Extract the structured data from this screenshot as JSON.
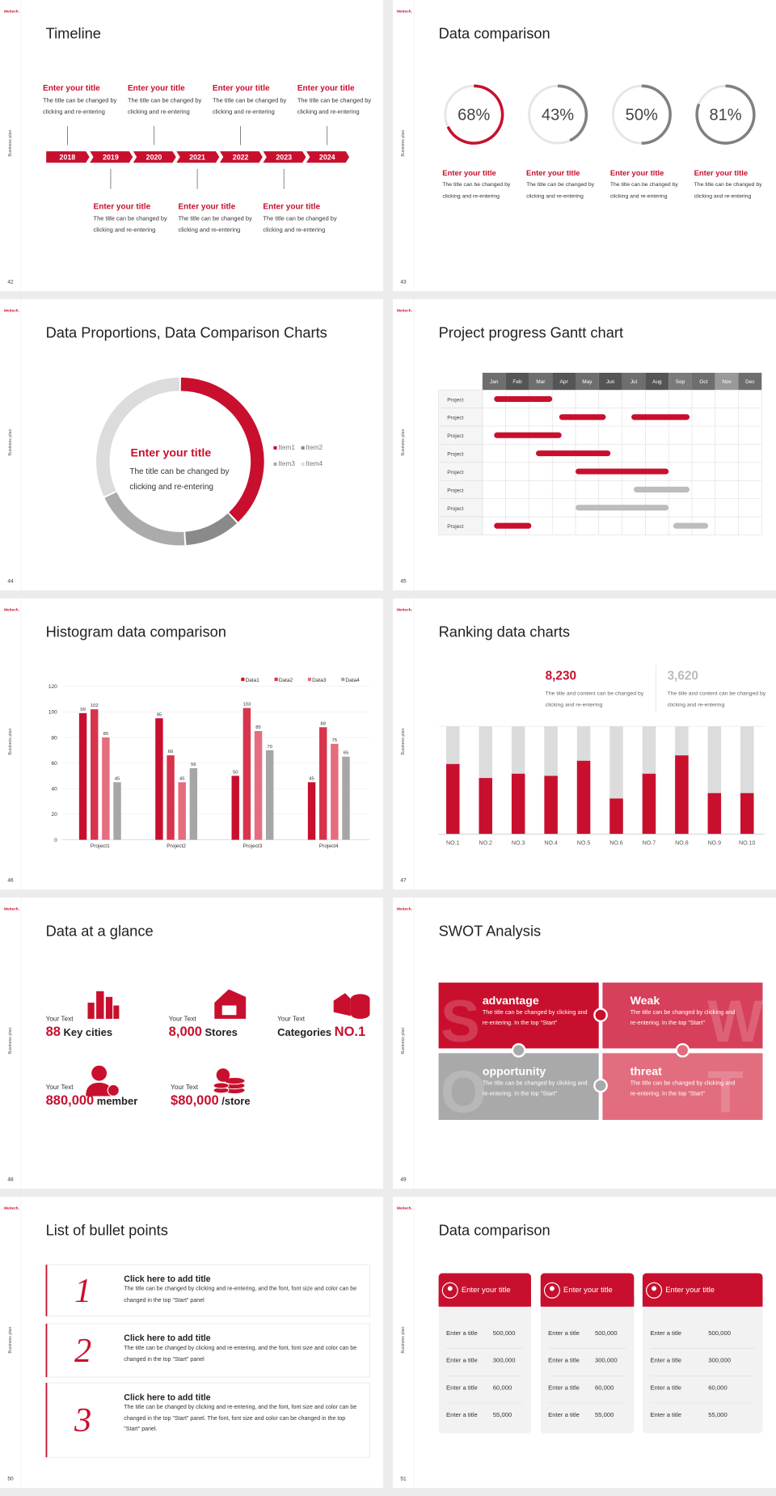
{
  "slides": [
    {
      "logo": "Weitech.",
      "side": "Business plan",
      "number": "42",
      "title": "Timeline",
      "years": [
        "2018",
        "2019",
        "2020",
        "2021",
        "2022",
        "2023",
        "2024"
      ],
      "top_events": [
        {
          "title": "Enter your title",
          "text": "The title can be changed by clicking and re-entering"
        },
        {
          "title": "Enter your title",
          "text": "The title can be changed by clicking and re-entering"
        },
        {
          "title": "Enter your title",
          "text": "The title can be changed by clicking and re-entering"
        },
        {
          "title": "Enter your title",
          "text": "The title can be changed by clicking and re-entering"
        }
      ],
      "bottom_events": [
        {
          "title": "Enter your title",
          "text": "The title can be changed by clicking and re-entering"
        },
        {
          "title": "Enter your title",
          "text": "The title can be changed by clicking and re-entering"
        },
        {
          "title": "Enter your title",
          "text": "The title can be changed by clicking and re-entering"
        }
      ]
    },
    {
      "logo": "Weitech.",
      "side": "Business plan",
      "number": "43",
      "title": "Data comparison",
      "items": [
        {
          "value": 68,
          "label": "68%",
          "color": "#c8102e",
          "title": "Enter your title",
          "text": "The title can be changed by clicking and re-entering"
        },
        {
          "value": 43,
          "label": "43%",
          "color": "#808080",
          "title": "Enter your title",
          "text": "The title can be changed by clicking and re-entering"
        },
        {
          "value": 50,
          "label": "50%",
          "color": "#808080",
          "title": "Enter your title",
          "text": "The title can be changed by clicking and re-entering"
        },
        {
          "value": 81,
          "label": "81%",
          "color": "#808080",
          "title": "Enter your title",
          "text": "The title can be changed by clicking and re-entering"
        }
      ]
    },
    {
      "logo": "Weitech.",
      "side": "Business plan",
      "number": "44",
      "title": "Data Proportions, Data Comparison Charts",
      "center_title": "Enter your title",
      "center_text": "The title can be changed by clicking and re-entering",
      "items": [
        {
          "name": "Item1",
          "value": 38,
          "color": "#c8102e"
        },
        {
          "name": "Item2",
          "value": 11,
          "color": "#8a8a8a"
        },
        {
          "name": "Item3",
          "value": 19,
          "color": "#ababab"
        },
        {
          "name": "Item4",
          "value": 32,
          "color": "#dcdcdc"
        }
      ]
    },
    {
      "logo": "Weitech.",
      "side": "Business plan",
      "number": "45",
      "title": "Project progress Gantt chart",
      "months": [
        "Jan",
        "Feb",
        "Mar",
        "Apr",
        "May",
        "Jun",
        "Jul",
        "Aug",
        "Sep",
        "Oct",
        "Nov",
        "Dec"
      ],
      "rows": [
        {
          "label": "Project",
          "bars": [
            {
              "start": 0.5,
              "end": 3.0,
              "color": "#c8102e"
            }
          ]
        },
        {
          "label": "Project",
          "bars": [
            {
              "start": 3.3,
              "end": 5.3,
              "color": "#c8102e"
            },
            {
              "start": 6.4,
              "end": 8.9,
              "color": "#c8102e"
            }
          ]
        },
        {
          "label": "Project",
          "bars": [
            {
              "start": 0.5,
              "end": 3.4,
              "color": "#c8102e"
            }
          ]
        },
        {
          "label": "Project",
          "bars": [
            {
              "start": 2.3,
              "end": 5.5,
              "color": "#c8102e"
            }
          ]
        },
        {
          "label": "Project",
          "bars": [
            {
              "start": 4.0,
              "end": 8.0,
              "color": "#c8102e"
            }
          ]
        },
        {
          "label": "Project",
          "bars": [
            {
              "start": 6.5,
              "end": 8.9,
              "color": "#bdbdbd"
            }
          ]
        },
        {
          "label": "Project",
          "bars": [
            {
              "start": 4.0,
              "end": 8.0,
              "color": "#bdbdbd"
            }
          ]
        },
        {
          "label": "Project",
          "bars": [
            {
              "start": 0.5,
              "end": 2.1,
              "color": "#c8102e"
            },
            {
              "start": 8.2,
              "end": 9.7,
              "color": "#bdbdbd"
            }
          ]
        }
      ]
    },
    {
      "logo": "Weitech.",
      "side": "Business plan",
      "number": "46",
      "title": "Histogram data comparison",
      "categories": [
        "Project1",
        "Project2",
        "Project3",
        "Project4"
      ],
      "series": [
        {
          "name": "Data1",
          "color": "#c8102e",
          "values": [
            99,
            95,
            50,
            45
          ]
        },
        {
          "name": "Data2",
          "color": "#d8344d",
          "values": [
            102,
            66,
            103,
            88
          ]
        },
        {
          "name": "Data3",
          "color": "#e66d7e",
          "values": [
            80,
            45,
            85,
            75
          ]
        },
        {
          "name": "Data4",
          "color": "#a6a6a6",
          "values": [
            45,
            56,
            70,
            65
          ]
        }
      ],
      "ylim": [
        0,
        120
      ],
      "yticks": [
        0,
        20,
        40,
        60,
        80,
        100,
        120
      ]
    },
    {
      "logo": "Weitech.",
      "side": "Business plan",
      "number": "47",
      "title": "Ranking data charts",
      "stats": [
        {
          "value": "8,230",
          "color": "#c8102e",
          "text": "The title and content can be changed by clicking and re-entering"
        },
        {
          "value": "3,620",
          "color": "#bbbbbb",
          "text": "The title and content can be changed by clicking and re-entering"
        }
      ],
      "categories": [
        "NO.1",
        "NO.2",
        "NO.3",
        "NO.4",
        "NO.5",
        "NO.6",
        "NO.7",
        "NO.8",
        "NO.9",
        "NO.10"
      ],
      "values": [
        65,
        52,
        56,
        54,
        68,
        33,
        56,
        73,
        38,
        38
      ],
      "ylim": [
        0,
        100
      ]
    },
    {
      "logo": "Weitech.",
      "side": "Business plan",
      "number": "48",
      "title": "Data at a glance",
      "items": [
        {
          "caption": "Your Text",
          "value": "88",
          "unit": "Key cities"
        },
        {
          "caption": "Your Text",
          "value": "8,000",
          "unit": "Stores"
        },
        {
          "caption": "Your Text",
          "value": "NO.1",
          "unit": "Categories"
        },
        {
          "caption": "Your Text",
          "value": "880,000",
          "unit": "member"
        },
        {
          "caption": "Your Text",
          "value": "$80,000",
          "unit": "/store"
        }
      ]
    },
    {
      "logo": "Weitech.",
      "side": "Business plan",
      "number": "49",
      "title": "SWOT Analysis",
      "quadrants": [
        {
          "letter": "S",
          "title": "advantage",
          "text": "The title can be changed by clicking and re-entering. In the top \"Start\""
        },
        {
          "letter": "W",
          "title": "Weak",
          "text": "The title can be changed by clicking and re-entering. In the top \"Start\""
        },
        {
          "letter": "O",
          "title": "opportunity",
          "text": "The title can be changed by clicking and re-entering. In the top \"Start\""
        },
        {
          "letter": "T",
          "title": "threat",
          "text": "The title can be changed by clicking and re-entering. In the top \"Start\""
        }
      ]
    },
    {
      "logo": "Weitech.",
      "side": "Business plan",
      "number": "50",
      "title": "List of bullet points",
      "items": [
        {
          "number": "1",
          "title": "Click here to add title",
          "text": "The title can be changed by clicking and re-entering, and the font, font size and color can be changed in the top \"Start\" panel"
        },
        {
          "number": "2",
          "title": "Click here to add title",
          "text": "The title can be changed by clicking and re-entering, and the font, font size and color can be changed in the top \"Start\" panel"
        },
        {
          "number": "3",
          "title": "Click here to add title",
          "text": "The title can be changed by clicking and re-entering, and the font, font size and color can be changed in the top \"Start\" panel. The font, font size and color can be changed in the top \"Start\" panel."
        }
      ]
    },
    {
      "logo": "Weitech.",
      "side": "Business plan",
      "number": "51",
      "title": "Data comparison",
      "cards": [
        {
          "title": "Enter your title",
          "rows": [
            {
              "label": "Enter a title",
              "value": "500,000"
            },
            {
              "label": "Enter a title",
              "value": "300,000"
            },
            {
              "label": "Enter a title",
              "value": "60,000"
            },
            {
              "label": "Enter a title",
              "value": "55,000"
            }
          ]
        },
        {
          "title": "Enter your title",
          "rows": [
            {
              "label": "Enter a title",
              "value": "500,000"
            },
            {
              "label": "Enter a title",
              "value": "300,000"
            },
            {
              "label": "Enter a title",
              "value": "60,000"
            },
            {
              "label": "Enter a title",
              "value": "55,000"
            }
          ]
        },
        {
          "title": "Enter your title",
          "rows": [
            {
              "label": "Enter a title",
              "value": "500,000"
            },
            {
              "label": "Enter a title",
              "value": "300,000"
            },
            {
              "label": "Enter a title",
              "value": "60,000"
            },
            {
              "label": "Enter a title",
              "value": "55,000"
            }
          ]
        }
      ]
    }
  ]
}
